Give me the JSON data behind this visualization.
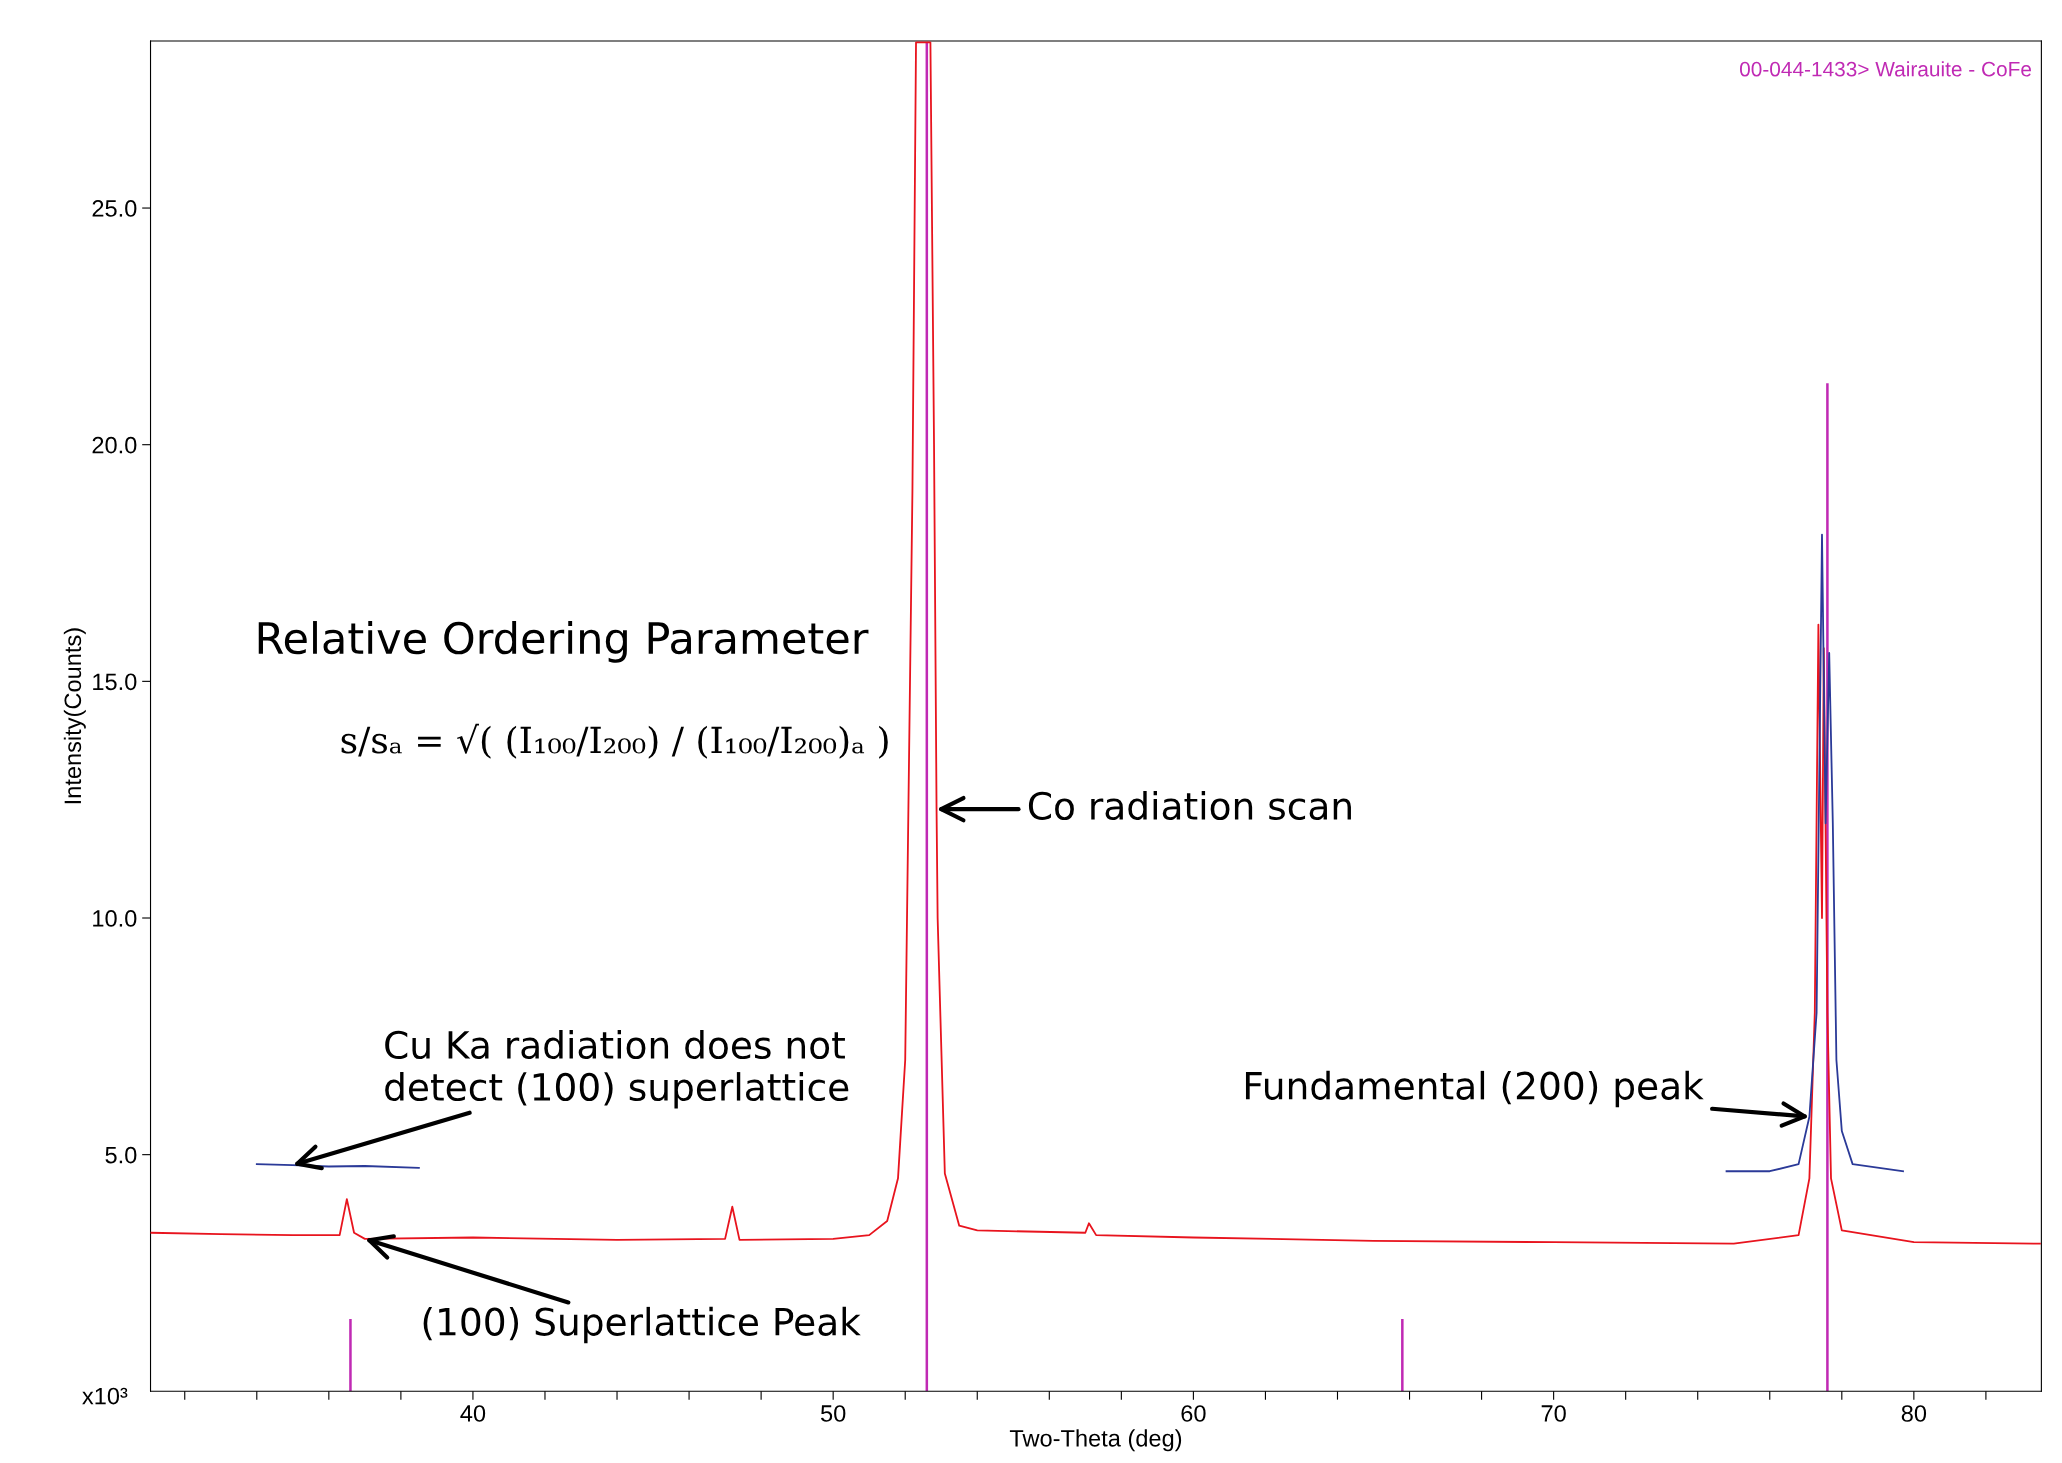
{
  "chart_data": {
    "type": "line",
    "xlabel": "Two-Theta (deg)",
    "ylabel": "Intensity(Counts)",
    "xlim": [
      31.05,
      83.54
    ],
    "ylim": [
      0,
      28.53
    ],
    "xticks": [
      {
        "value": 32,
        "label": null
      },
      {
        "value": 34,
        "label": null
      },
      {
        "value": 36,
        "label": null
      },
      {
        "value": 38,
        "label": null
      },
      40,
      {
        "value": 42,
        "label": null
      },
      {
        "value": 44,
        "label": null
      },
      {
        "value": 46,
        "label": null
      },
      {
        "value": 48,
        "label": null
      },
      50,
      {
        "value": 52,
        "label": null
      },
      {
        "value": 54,
        "label": null
      },
      {
        "value": 56,
        "label": null
      },
      {
        "value": 58,
        "label": null
      },
      60,
      {
        "value": 62,
        "label": null
      },
      {
        "value": 64,
        "label": null
      },
      {
        "value": 66,
        "label": null
      },
      {
        "value": 68,
        "label": null
      },
      70,
      {
        "value": 72,
        "label": null
      },
      {
        "value": 74,
        "label": null
      },
      {
        "value": 76,
        "label": null
      },
      {
        "value": 78,
        "label": null
      },
      80,
      {
        "value": 82,
        "label": null
      }
    ],
    "yticks": [
      {
        "value": 5,
        "label": "5.0"
      },
      {
        "value": 10,
        "label": "10.0"
      },
      {
        "value": 15,
        "label": "15.0"
      },
      {
        "value": 20,
        "label": "20.0"
      },
      {
        "value": 25,
        "label": "25.0"
      }
    ],
    "grid": false,
    "legend": false,
    "series": [
      {
        "color": "#e8141e",
        "x": [
          31.05,
          33,
          35,
          36.3,
          36.5,
          36.7,
          37,
          40,
          44,
          47.0,
          47.2,
          47.4,
          50,
          51.0,
          51.5,
          51.8,
          52.0,
          52.2,
          52.3,
          52.7,
          52.8,
          52.87,
          52.9,
          53.1,
          53.5,
          54,
          57,
          57.1,
          57.3,
          60,
          65,
          70,
          75,
          76.8,
          77.1,
          77.25,
          77.35,
          77.45,
          77.5,
          77.6,
          77.7,
          78,
          80,
          83.5
        ],
        "values": [
          3.35,
          3.32,
          3.3,
          3.3,
          4.06,
          3.35,
          3.22,
          3.25,
          3.2,
          3.22,
          3.9,
          3.2,
          3.22,
          3.3,
          3.6,
          4.5,
          7,
          19,
          28.5,
          28.5,
          20,
          12.3,
          10,
          4.6,
          3.5,
          3.4,
          3.35,
          3.55,
          3.3,
          3.25,
          3.18,
          3.15,
          3.12,
          3.3,
          4.5,
          8,
          16.2,
          10,
          15.7,
          8,
          4.5,
          3.4,
          3.15,
          3.12
        ]
      },
      {
        "color": "#2b3a98",
        "x": [
          34.0,
          35,
          36,
          37,
          38.5,
          56,
          74.8,
          76,
          76.8,
          77.1,
          77.3,
          77.45,
          77.55,
          77.65,
          77.75,
          77.85,
          78.0,
          78.3,
          79.7
        ],
        "values": [
          4.8,
          4.78,
          4.75,
          4.76,
          4.72,
          null,
          4.65,
          4.65,
          4.8,
          5.8,
          8,
          18.1,
          12,
          15.6,
          12,
          7,
          5.5,
          4.8,
          4.65
        ]
      },
      {
        "type": "bar",
        "name": "00-044-1433> Wairauite - CoFe",
        "color": "#c02ab4",
        "x": [
          36.6,
          52.6,
          65.8,
          77.6
        ],
        "values": [
          1.53,
          28.5,
          1.53,
          21.3
        ]
      }
    ],
    "annotations": [
      "x10³",
      "Relative Ordering Parameter",
      "s/sₐ = √( (I₁₀₀/I₂₀₀) / (I₁₀₀/I₂₀₀)ₐ )",
      {
        "text": "Co radiation scan",
        "x": 52.87,
        "y": 12.3
      },
      {
        "text": "Cu Ka radiation does not\ndetect (100) superlattice",
        "x": 35,
        "y": 4.78
      },
      {
        "text": "(100) Superlattice Peak",
        "x": 37,
        "y": 3.22
      },
      {
        "text": "Fundamental (200) peak",
        "x": 77.1,
        "y": 5.8
      }
    ]
  }
}
